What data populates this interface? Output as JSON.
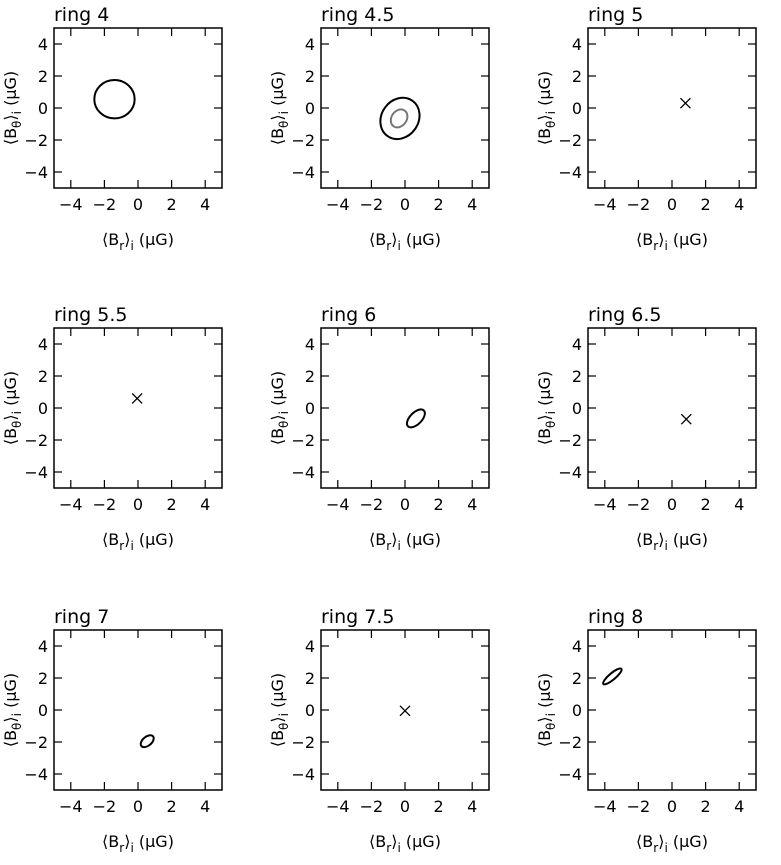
{
  "chart_data": [
    {
      "type": "scatter",
      "title": "ring 4",
      "xlabel": "⟨B_r⟩_i (μG)",
      "ylabel": "⟨B_θ⟩_i (μG)",
      "xlim": [
        -5,
        5
      ],
      "ylim": [
        -5,
        5
      ],
      "xticks": [
        -4,
        -2,
        0,
        2,
        4
      ],
      "yticks": [
        -4,
        -2,
        0,
        2,
        4
      ],
      "contours": [
        {
          "cx": -1.4,
          "cy": 0.55,
          "rx": 1.2,
          "ry": 1.2,
          "angle": 0,
          "color": "#000000"
        }
      ],
      "points": []
    },
    {
      "type": "scatter",
      "title": "ring 4.5",
      "xlabel": "⟨B_r⟩_i (μG)",
      "ylabel": "⟨B_θ⟩_i (μG)",
      "xlim": [
        -5,
        5
      ],
      "ylim": [
        -5,
        5
      ],
      "xticks": [
        -4,
        -2,
        0,
        2,
        4
      ],
      "yticks": [
        -4,
        -2,
        0,
        2,
        4
      ],
      "contours": [
        {
          "cx": -0.3,
          "cy": -0.65,
          "rx": 1.1,
          "ry": 1.35,
          "angle": 35,
          "color": "#000000"
        },
        {
          "cx": -0.35,
          "cy": -0.65,
          "rx": 0.45,
          "ry": 0.6,
          "angle": 35,
          "color": "#777777"
        }
      ],
      "points": []
    },
    {
      "type": "scatter",
      "title": "ring 5",
      "xlabel": "⟨B_r⟩_i (μG)",
      "ylabel": "⟨B_θ⟩_i (μG)",
      "xlim": [
        -5,
        5
      ],
      "ylim": [
        -5,
        5
      ],
      "xticks": [
        -4,
        -2,
        0,
        2,
        4
      ],
      "yticks": [
        -4,
        -2,
        0,
        2,
        4
      ],
      "contours": [],
      "points": [
        {
          "x": 0.8,
          "y": 0.3
        }
      ]
    },
    {
      "type": "scatter",
      "title": "ring 5.5",
      "xlabel": "⟨B_r⟩_i (μG)",
      "ylabel": "⟨B_θ⟩_i (μG)",
      "xlim": [
        -5,
        5
      ],
      "ylim": [
        -5,
        5
      ],
      "xticks": [
        -4,
        -2,
        0,
        2,
        4
      ],
      "yticks": [
        -4,
        -2,
        0,
        2,
        4
      ],
      "contours": [],
      "points": [
        {
          "x": -0.05,
          "y": 0.6
        }
      ]
    },
    {
      "type": "scatter",
      "title": "ring 6",
      "xlabel": "⟨B_r⟩_i (μG)",
      "ylabel": "⟨B_θ⟩_i (μG)",
      "xlim": [
        -5,
        5
      ],
      "ylim": [
        -5,
        5
      ],
      "xticks": [
        -4,
        -2,
        0,
        2,
        4
      ],
      "yticks": [
        -4,
        -2,
        0,
        2,
        4
      ],
      "contours": [
        {
          "cx": 0.65,
          "cy": -0.65,
          "rx": 0.35,
          "ry": 0.7,
          "angle": 45,
          "color": "#000000"
        }
      ],
      "points": []
    },
    {
      "type": "scatter",
      "title": "ring 6.5",
      "xlabel": "⟨B_r⟩_i (μG)",
      "ylabel": "⟨B_θ⟩_i (μG)",
      "xlim": [
        -5,
        5
      ],
      "ylim": [
        -5,
        5
      ],
      "xticks": [
        -4,
        -2,
        0,
        2,
        4
      ],
      "yticks": [
        -4,
        -2,
        0,
        2,
        4
      ],
      "contours": [],
      "points": [
        {
          "x": 0.85,
          "y": -0.7
        }
      ]
    },
    {
      "type": "scatter",
      "title": "ring 7",
      "xlabel": "⟨B_r⟩_i (μG)",
      "ylabel": "⟨B_θ⟩_i (μG)",
      "xlim": [
        -5,
        5
      ],
      "ylim": [
        -5,
        5
      ],
      "xticks": [
        -4,
        -2,
        0,
        2,
        4
      ],
      "yticks": [
        -4,
        -2,
        0,
        2,
        4
      ],
      "contours": [
        {
          "cx": 0.55,
          "cy": -1.95,
          "rx": 0.45,
          "ry": 0.28,
          "angle": -40,
          "color": "#000000"
        }
      ],
      "points": []
    },
    {
      "type": "scatter",
      "title": "ring 7.5",
      "xlabel": "⟨B_r⟩_i (μG)",
      "ylabel": "⟨B_θ⟩_i (μG)",
      "xlim": [
        -5,
        5
      ],
      "ylim": [
        -5,
        5
      ],
      "xticks": [
        -4,
        -2,
        0,
        2,
        4
      ],
      "yticks": [
        -4,
        -2,
        0,
        2,
        4
      ],
      "contours": [],
      "points": [
        {
          "x": 0.0,
          "y": -0.05
        }
      ]
    },
    {
      "type": "scatter",
      "title": "ring 8",
      "xlabel": "⟨B_r⟩_i (μG)",
      "ylabel": "⟨B_θ⟩_i (μG)",
      "xlim": [
        -5,
        5
      ],
      "ylim": [
        -5,
        5
      ],
      "xticks": [
        -4,
        -2,
        0,
        2,
        4
      ],
      "yticks": [
        -4,
        -2,
        0,
        2,
        4
      ],
      "contours": [
        {
          "cx": -3.55,
          "cy": 2.1,
          "rx": 0.7,
          "ry": 0.2,
          "angle": -40,
          "color": "#000000"
        }
      ],
      "points": []
    }
  ]
}
